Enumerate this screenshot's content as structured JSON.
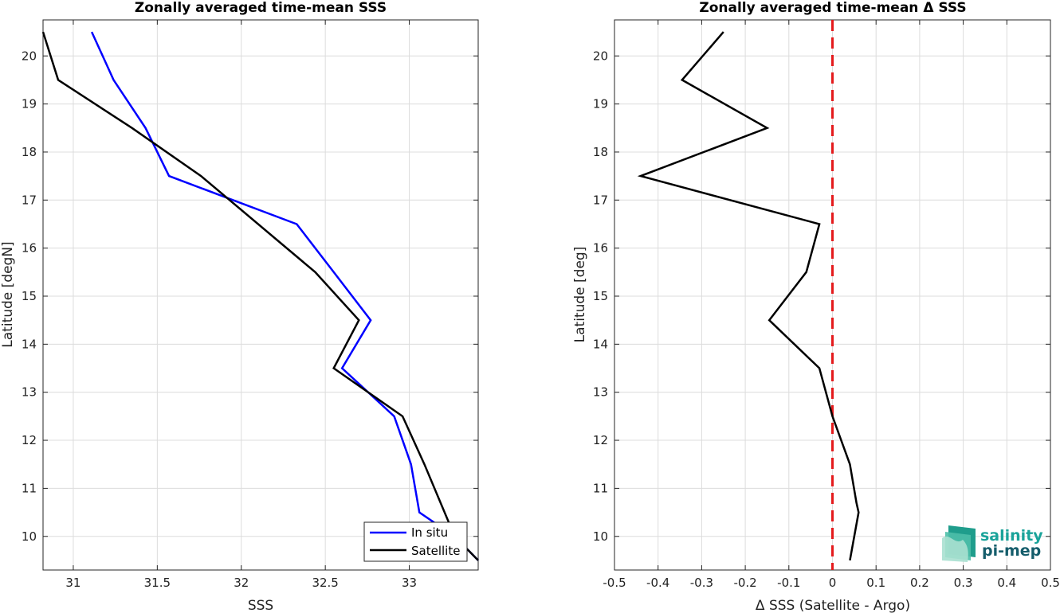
{
  "colors": {
    "insitu": "#0000ff",
    "satellite": "#000000",
    "zero_line": "#e41a1c",
    "grid": "#dcdcdc",
    "logo_text": "#1aa39a",
    "logo_text_dark": "#155d6b"
  },
  "logo": {
    "line1": "salinity",
    "line2": "pi-mep"
  },
  "chart_data": [
    {
      "type": "line",
      "title": "Zonally averaged time-mean SSS",
      "xlabel": "SSS",
      "ylabel": "Latitude [degN]",
      "xlim": [
        30.82,
        33.41
      ],
      "ylim": [
        9.3,
        20.75
      ],
      "xticks": [
        31,
        31.5,
        32,
        32.5,
        33
      ],
      "xtick_labels": [
        "31",
        "31.5",
        "32",
        "32.5",
        "33"
      ],
      "yticks": [
        10,
        11,
        12,
        13,
        14,
        15,
        16,
        17,
        18,
        19,
        20
      ],
      "ytick_labels": [
        "10",
        "11",
        "12",
        "13",
        "14",
        "15",
        "16",
        "17",
        "18",
        "19",
        "20"
      ],
      "grid": true,
      "legend": "bottom-right",
      "series": [
        {
          "name": "In situ",
          "color": "#0000ff",
          "x": [
            33.41,
            33.27,
            33.06,
            33.01,
            32.91,
            32.6,
            32.77,
            32.55,
            32.33,
            31.57,
            31.43,
            31.24,
            31.11
          ],
          "y": [
            9.5,
            10.0,
            10.5,
            11.5,
            12.5,
            13.5,
            14.5,
            15.5,
            16.5,
            17.5,
            18.5,
            19.5,
            20.5
          ]
        },
        {
          "name": "Satellite",
          "color": "#000000",
          "x": [
            33.41,
            33.27,
            33.09,
            32.96,
            32.55,
            32.7,
            32.44,
            31.76,
            31.35,
            30.91,
            30.82
          ],
          "y": [
            9.5,
            10.0,
            11.5,
            12.5,
            13.5,
            14.5,
            15.5,
            17.5,
            18.5,
            19.5,
            20.5
          ]
        }
      ]
    },
    {
      "type": "line",
      "title": "Zonally averaged time-mean Δ SSS",
      "xlabel": "Δ SSS (Satellite - Argo)",
      "ylabel": "Latitude [deg]",
      "xlim": [
        -0.5,
        0.5
      ],
      "ylim": [
        9.3,
        20.75
      ],
      "xticks": [
        -0.5,
        -0.4,
        -0.3,
        -0.2,
        -0.1,
        0,
        0.1,
        0.2,
        0.3,
        0.4,
        0.5
      ],
      "xtick_labels": [
        "-0.5",
        "-0.4",
        "-0.3",
        "-0.2",
        "-0.1",
        "0",
        "0.1",
        "0.2",
        "0.3",
        "0.4",
        "0.5"
      ],
      "yticks": [
        10,
        11,
        12,
        13,
        14,
        15,
        16,
        17,
        18,
        19,
        20
      ],
      "ytick_labels": [
        "10",
        "11",
        "12",
        "13",
        "14",
        "15",
        "16",
        "17",
        "18",
        "19",
        "20"
      ],
      "grid": true,
      "reference_line": {
        "x": 0,
        "style": "dashed",
        "color": "#e41a1c"
      },
      "series": [
        {
          "color": "#000000",
          "x": [
            0.04,
            0.06,
            0.055,
            0.04,
            0.0,
            -0.03,
            -0.145,
            -0.06,
            -0.03,
            -0.44,
            -0.15,
            -0.345,
            -0.25
          ],
          "y": [
            9.5,
            10.5,
            10.7,
            11.5,
            12.5,
            13.5,
            14.5,
            15.5,
            16.5,
            17.5,
            18.5,
            19.5,
            20.5
          ]
        }
      ]
    }
  ]
}
